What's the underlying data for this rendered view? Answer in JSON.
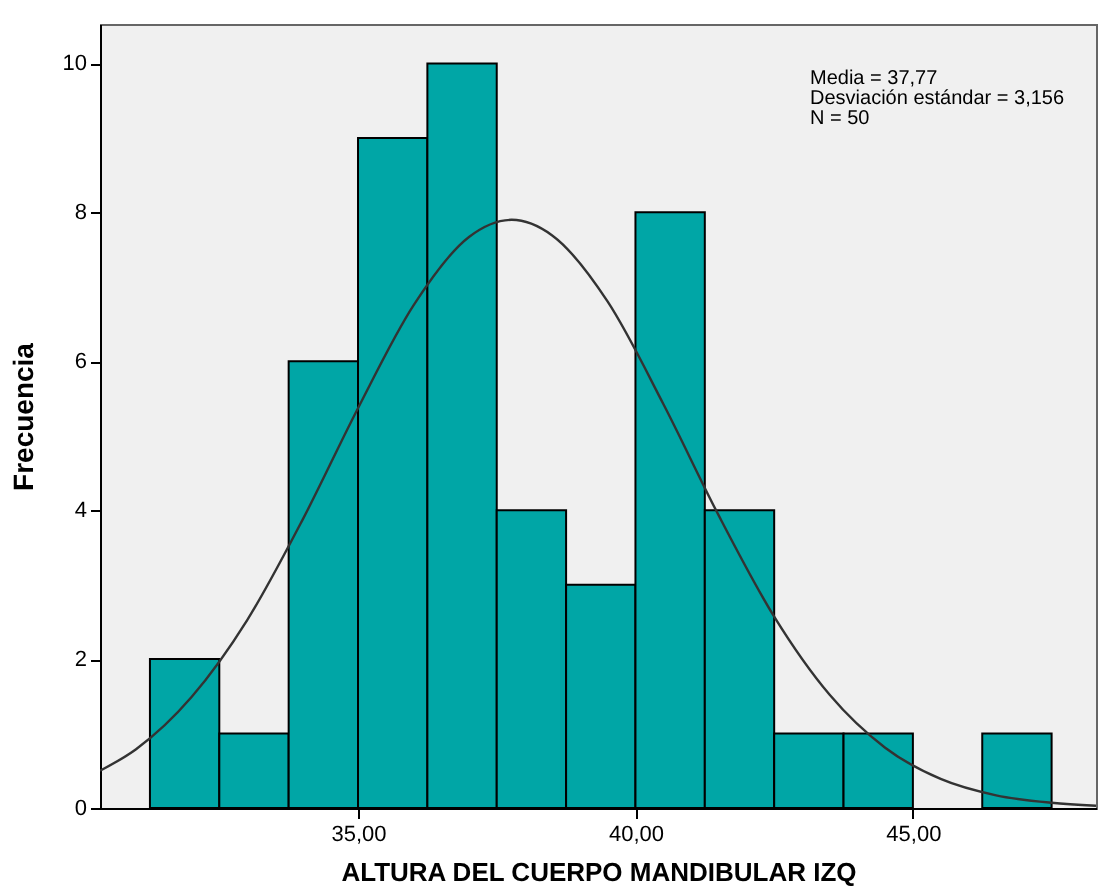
{
  "chart_data": {
    "type": "histogram",
    "xlabel": "ALTURA DEL CUERPO MANDIBULAR IZQ",
    "ylabel": "Frecuencia",
    "bins": [
      31.25,
      32.5,
      33.75,
      35,
      36.25,
      37.5,
      38.75,
      40,
      41.25,
      42.5,
      43.75,
      45,
      46.25,
      47.5
    ],
    "values": [
      2,
      1,
      6,
      9,
      10,
      4,
      3,
      8,
      4,
      1,
      1,
      0,
      1
    ],
    "color": "#00a6a6",
    "series": [
      {
        "type": "line",
        "color": "#333333",
        "x": [
          30.35,
          31,
          32,
          33,
          34,
          35,
          36,
          37,
          37.77,
          38.5,
          39.5,
          40.5,
          41.5,
          42.5,
          43.5,
          44.5,
          45.5,
          46.5,
          47.5,
          48.3
        ],
        "values": [
          0.5,
          0.79,
          1.49,
          2.52,
          3.87,
          5.37,
          6.75,
          7.67,
          7.9,
          7.69,
          6.8,
          5.43,
          3.93,
          2.57,
          1.52,
          0.81,
          0.39,
          0.17,
          0.07,
          0.03
        ]
      }
    ],
    "xlim": [
      30.35,
      48.3
    ],
    "ylim": [
      0,
      10.53
    ],
    "xticks": [
      {
        "value": 35,
        "label": "35,00"
      },
      {
        "value": 40,
        "label": "40,00"
      },
      {
        "value": 45,
        "label": "45,00"
      }
    ],
    "yticks": [
      0,
      2,
      4,
      6,
      8,
      10
    ],
    "grid": false,
    "annotations": [
      "Media = 37,77",
      "Desviación estándar = 3,156",
      "N = 50"
    ]
  }
}
